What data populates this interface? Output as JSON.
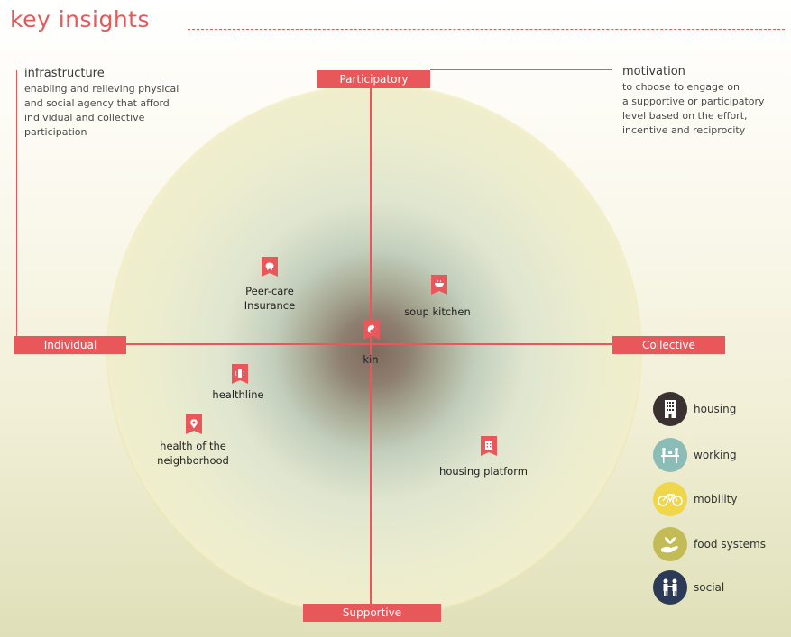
{
  "header": {
    "title": "key insights"
  },
  "axes": {
    "top": "Participatory",
    "bottom": "Supportive",
    "left": "Individual",
    "right": "Collective"
  },
  "notes": {
    "infrastructure": {
      "title": "infrastructure",
      "lines": [
        "enabling and relieving physical",
        "and social agency that afford",
        "individual and collective",
        "participation"
      ]
    },
    "motivation": {
      "title": "motivation",
      "lines": [
        "to choose to engage on",
        "a supportive or participatory",
        "level based on the effort,",
        "incentive and reciprocity"
      ]
    }
  },
  "nodes": {
    "peer_care": {
      "lines": [
        "Peer-care",
        "Insurance"
      ],
      "icon": "piggy-bank-icon"
    },
    "soup_kitchen": {
      "lines": [
        "soup kitchen"
      ],
      "icon": "bowl-icon"
    },
    "kin": {
      "lines": [
        "kin"
      ],
      "icon": "yin-yang-icon"
    },
    "healthline": {
      "lines": [
        "healthline"
      ],
      "icon": "phone-icon"
    },
    "health_neighborhood": {
      "lines": [
        "health of the",
        "neighborhood"
      ],
      "icon": "location-heart-icon"
    },
    "housing_platform": {
      "lines": [
        "housing platform"
      ],
      "icon": "building-icon"
    }
  },
  "legend": [
    {
      "label": "housing",
      "color": "#3a3131",
      "icon": "building-icon"
    },
    {
      "label": "working",
      "color": "#8bbcb6",
      "icon": "desk-meeting-icon"
    },
    {
      "label": "mobility",
      "color": "#efd64a",
      "icon": "bicycle-icon"
    },
    {
      "label": "food systems",
      "color": "#c3bb56",
      "icon": "hand-plant-icon"
    },
    {
      "label": "social",
      "color": "#2c3a57",
      "icon": "handshake-icon"
    }
  ],
  "colors": {
    "accent": "#e8575a"
  }
}
